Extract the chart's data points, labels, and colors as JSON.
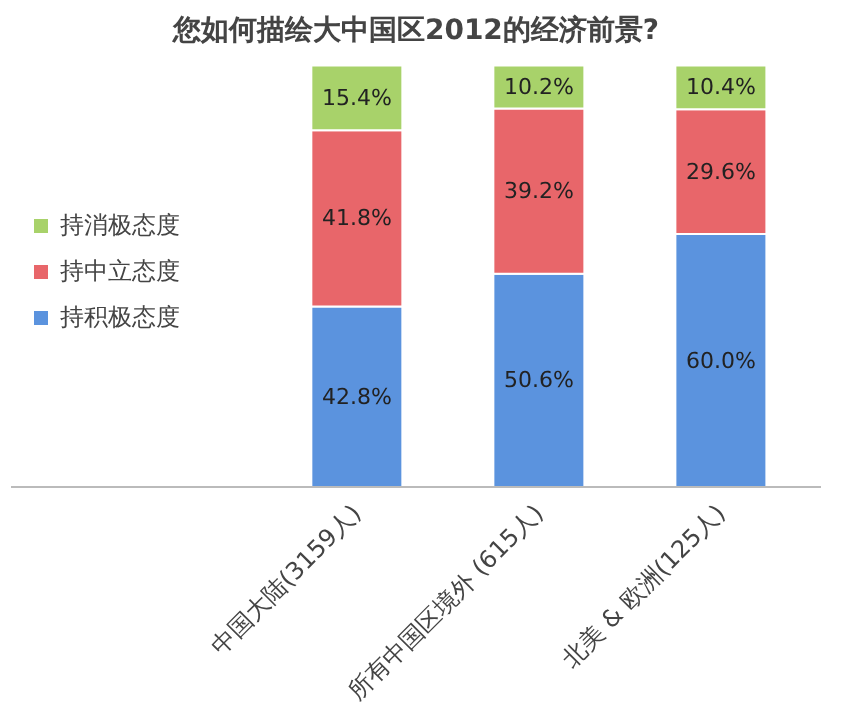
{
  "chart_data": {
    "type": "bar",
    "title": "您如何描绘大中国区2012的经济前景?",
    "categories": [
      "中国大陆(3159人)",
      "所有中国区境外 (615人)",
      "北美 & 欧洲(125人)"
    ],
    "stacked": true,
    "legend": "left",
    "series": [
      {
        "name": "持积极态度",
        "color": "#5b93de",
        "values": [
          42.8,
          50.6,
          60.0
        ],
        "value_labels": [
          "42.8%",
          "50.6%",
          "60.0%"
        ]
      },
      {
        "name": "持中立态度",
        "color": "#e8666a",
        "values": [
          41.8,
          39.2,
          29.6
        ],
        "value_labels": [
          "41.8%",
          "39.2%",
          "29.6%"
        ]
      },
      {
        "name": "持消极态度",
        "color": "#a8d26a",
        "values": [
          15.4,
          10.2,
          10.4
        ],
        "value_labels": [
          "15.4%",
          "10.2%",
          "10.4%"
        ]
      }
    ]
  }
}
